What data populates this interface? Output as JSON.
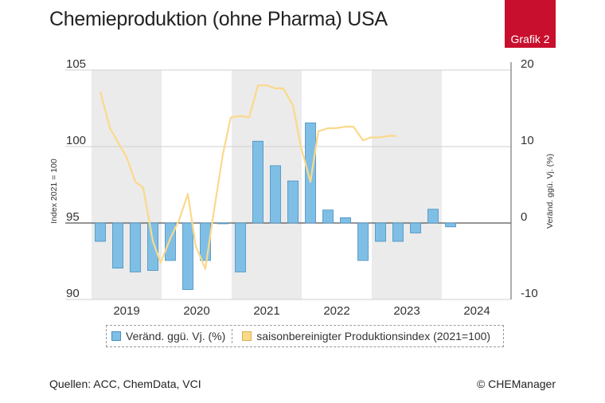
{
  "header": {
    "title": "Chemieproduktion (ohne Pharma) USA",
    "badge": "Grafik 2"
  },
  "footer": {
    "sources": "Quellen: ACC, ChemData, VCI",
    "copyright": "© CHEManager"
  },
  "colors": {
    "bar_fill": "#7fbfe6",
    "bar_stroke": "#4a8fbf",
    "line": "#fbd98a",
    "band": "#ebebeb",
    "badge": "#c8102e"
  },
  "chart_data": {
    "type": "bar+line",
    "title": "Chemieproduktion (ohne Pharma) USA",
    "ylabel_left": "Index 2021 = 100",
    "ylabel_right": "Veränd. ggü. Vj. (%)",
    "left_axis": {
      "range": [
        90,
        105
      ],
      "ticks": [
        90,
        95,
        100,
        105
      ]
    },
    "right_axis": {
      "range": [
        -10,
        20
      ],
      "ticks": [
        -10,
        0,
        10,
        20
      ]
    },
    "year_labels": [
      "2019",
      "2020",
      "2021",
      "2022",
      "2023",
      "2024"
    ],
    "quarters": [
      "2019 Q1",
      "2019 Q2",
      "2019 Q3",
      "2019 Q4",
      "2020 Q1",
      "2020 Q2",
      "2020 Q3",
      "2020 Q4",
      "2021 Q1",
      "2021 Q2",
      "2021 Q3",
      "2021 Q4",
      "2022 Q1",
      "2022 Q2",
      "2022 Q3",
      "2022 Q4",
      "2023 Q1",
      "2023 Q2",
      "2023 Q3",
      "2023 Q4",
      "2024 Q1"
    ],
    "series": [
      {
        "name": "Veränd. ggü. Vj. (%)",
        "type": "bar",
        "axis": "right",
        "values": [
          -2.4,
          -5.9,
          -6.4,
          -6.2,
          -4.9,
          -8.7,
          -4.9,
          -0.1,
          -6.4,
          10.7,
          7.5,
          5.5,
          13.1,
          1.7,
          0.7,
          -4.9,
          -2.4,
          -2.4,
          -1.3,
          1.8,
          -0.5
        ]
      },
      {
        "name": "saisonbereinigter Produktionsindex (2021=100)",
        "type": "line",
        "axis": "left",
        "x": [
          0.0,
          0.55,
          1.0,
          1.5,
          2.0,
          2.45,
          3.0,
          3.45,
          4.0,
          4.5,
          5.0,
          5.45,
          6.0,
          6.45,
          7.0,
          7.45,
          8.0,
          8.5,
          9.0,
          9.5,
          10.0,
          10.45,
          11.0,
          11.45,
          12.0,
          12.45,
          13.0,
          13.45,
          14.0,
          14.45,
          15.0,
          15.45,
          16.0,
          16.45,
          16.9
        ],
        "values": [
          103.6,
          101.2,
          100.3,
          99.3,
          97.7,
          97.3,
          93.8,
          92.4,
          94.0,
          95.2,
          96.9,
          93.5,
          92.0,
          95.5,
          99.5,
          101.9,
          102.0,
          101.9,
          104.0,
          104.0,
          103.8,
          103.8,
          102.7,
          100.0,
          97.7,
          101.0,
          101.2,
          101.2,
          101.3,
          101.3,
          100.4,
          100.6,
          100.6,
          100.7,
          100.7
        ]
      }
    ],
    "legend": [
      "Veränd. ggü. Vj. (%)",
      "saisonbereinigter Produktionsindex (2021=100)"
    ]
  }
}
